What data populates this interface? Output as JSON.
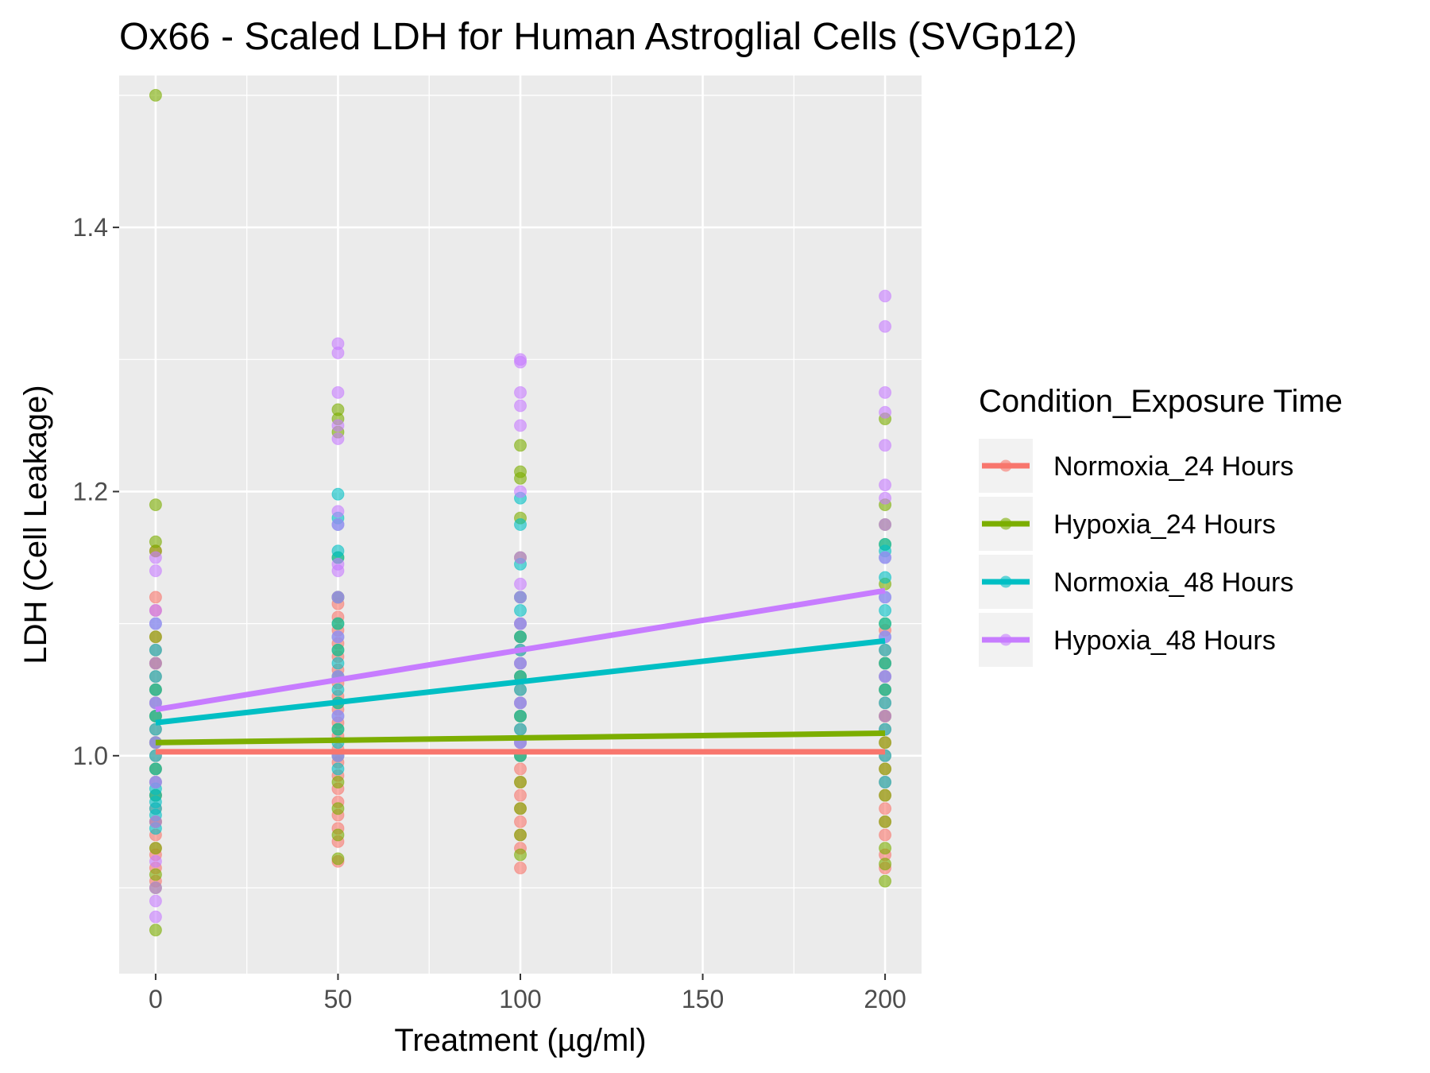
{
  "chart_data": {
    "type": "scatter",
    "title": "Ox66 - Scaled LDH for Human Astroglial Cells (SVGp12)",
    "xlabel": "Treatment (µg/ml)",
    "ylabel": "LDH (Cell Leakage)",
    "xlim": [
      -10,
      210
    ],
    "ylim": [
      0.835,
      1.515
    ],
    "x_ticks": [
      0,
      50,
      100,
      150,
      200
    ],
    "x_tick_labels": [
      "0",
      "50",
      "100",
      "150",
      "200"
    ],
    "y_ticks": [
      1.0,
      1.2,
      1.4
    ],
    "y_tick_labels": [
      "1.0",
      "1.2",
      "1.4"
    ],
    "grid": true,
    "legend": {
      "title": "Condition_Exposure Time",
      "position": "right"
    },
    "series": [
      {
        "name": "Normoxia_24 Hours",
        "color": "#F8766D",
        "trend": [
          [
            0,
            1.003
          ],
          [
            200,
            1.003
          ]
        ],
        "points": [
          [
            0,
            0.905
          ],
          [
            0,
            0.915
          ],
          [
            0,
            0.925
          ],
          [
            0,
            0.93
          ],
          [
            0,
            0.94
          ],
          [
            0,
            0.95
          ],
          [
            0,
            0.96
          ],
          [
            0,
            0.97
          ],
          [
            0,
            0.98
          ],
          [
            0,
            0.99
          ],
          [
            0,
            1.0
          ],
          [
            0,
            1.01
          ],
          [
            0,
            1.02
          ],
          [
            0,
            1.03
          ],
          [
            0,
            1.04
          ],
          [
            0,
            1.05
          ],
          [
            0,
            1.06
          ],
          [
            0,
            1.07
          ],
          [
            0,
            1.08
          ],
          [
            0,
            1.09
          ],
          [
            0,
            1.11
          ],
          [
            0,
            1.12
          ],
          [
            0,
            1.155
          ],
          [
            50,
            0.92
          ],
          [
            50,
            0.935
          ],
          [
            50,
            0.945
          ],
          [
            50,
            0.955
          ],
          [
            50,
            0.965
          ],
          [
            50,
            0.975
          ],
          [
            50,
            0.985
          ],
          [
            50,
            0.995
          ],
          [
            50,
            1.005
          ],
          [
            50,
            1.015
          ],
          [
            50,
            1.025
          ],
          [
            50,
            1.035
          ],
          [
            50,
            1.045
          ],
          [
            50,
            1.055
          ],
          [
            50,
            1.065
          ],
          [
            50,
            1.075
          ],
          [
            50,
            1.085
          ],
          [
            50,
            1.095
          ],
          [
            50,
            1.105
          ],
          [
            50,
            1.115
          ],
          [
            50,
            1.12
          ],
          [
            100,
            0.915
          ],
          [
            100,
            0.93
          ],
          [
            100,
            0.94
          ],
          [
            100,
            0.95
          ],
          [
            100,
            0.96
          ],
          [
            100,
            0.97
          ],
          [
            100,
            0.98
          ],
          [
            100,
            0.99
          ],
          [
            100,
            1.0
          ],
          [
            100,
            1.01
          ],
          [
            100,
            1.02
          ],
          [
            100,
            1.03
          ],
          [
            100,
            1.04
          ],
          [
            100,
            1.05
          ],
          [
            100,
            1.06
          ],
          [
            100,
            1.07
          ],
          [
            100,
            1.08
          ],
          [
            100,
            1.09
          ],
          [
            100,
            1.1
          ],
          [
            200,
            0.915
          ],
          [
            200,
            0.925
          ],
          [
            200,
            0.94
          ],
          [
            200,
            0.95
          ],
          [
            200,
            0.96
          ],
          [
            200,
            0.97
          ],
          [
            200,
            0.98
          ],
          [
            200,
            0.99
          ],
          [
            200,
            1.0
          ],
          [
            200,
            1.01
          ],
          [
            200,
            1.02
          ],
          [
            200,
            1.03
          ],
          [
            200,
            1.04
          ],
          [
            200,
            1.05
          ],
          [
            200,
            1.06
          ],
          [
            200,
            1.07
          ],
          [
            200,
            1.08
          ],
          [
            200,
            1.095
          ]
        ]
      },
      {
        "name": "Hypoxia_24 Hours",
        "color": "#7CAE00",
        "trend": [
          [
            0,
            1.01
          ],
          [
            200,
            1.017
          ]
        ],
        "points": [
          [
            0,
            0.868
          ],
          [
            0,
            0.9
          ],
          [
            0,
            0.91
          ],
          [
            0,
            0.93
          ],
          [
            0,
            0.95
          ],
          [
            0,
            0.97
          ],
          [
            0,
            0.99
          ],
          [
            0,
            1.01
          ],
          [
            0,
            1.03
          ],
          [
            0,
            1.05
          ],
          [
            0,
            1.07
          ],
          [
            0,
            1.09
          ],
          [
            0,
            1.155
          ],
          [
            0,
            1.162
          ],
          [
            0,
            1.19
          ],
          [
            0,
            1.5
          ],
          [
            50,
            0.922
          ],
          [
            50,
            0.94
          ],
          [
            50,
            0.96
          ],
          [
            50,
            0.98
          ],
          [
            50,
            1.0
          ],
          [
            50,
            1.02
          ],
          [
            50,
            1.04
          ],
          [
            50,
            1.06
          ],
          [
            50,
            1.08
          ],
          [
            50,
            1.1
          ],
          [
            50,
            1.12
          ],
          [
            50,
            1.15
          ],
          [
            50,
            1.245
          ],
          [
            50,
            1.255
          ],
          [
            50,
            1.262
          ],
          [
            100,
            0.925
          ],
          [
            100,
            0.94
          ],
          [
            100,
            0.96
          ],
          [
            100,
            0.98
          ],
          [
            100,
            1.0
          ],
          [
            100,
            1.03
          ],
          [
            100,
            1.06
          ],
          [
            100,
            1.09
          ],
          [
            100,
            1.12
          ],
          [
            100,
            1.15
          ],
          [
            100,
            1.18
          ],
          [
            100,
            1.21
          ],
          [
            100,
            1.215
          ],
          [
            100,
            1.235
          ],
          [
            200,
            0.905
          ],
          [
            200,
            0.918
          ],
          [
            200,
            0.93
          ],
          [
            200,
            0.95
          ],
          [
            200,
            0.97
          ],
          [
            200,
            0.99
          ],
          [
            200,
            1.01
          ],
          [
            200,
            1.03
          ],
          [
            200,
            1.05
          ],
          [
            200,
            1.07
          ],
          [
            200,
            1.1
          ],
          [
            200,
            1.13
          ],
          [
            200,
            1.16
          ],
          [
            200,
            1.175
          ],
          [
            200,
            1.19
          ],
          [
            200,
            1.255
          ]
        ]
      },
      {
        "name": "Normoxia_48 Hours",
        "color": "#00BFC4",
        "trend": [
          [
            0,
            1.025
          ],
          [
            200,
            1.087
          ]
        ],
        "points": [
          [
            0,
            0.945
          ],
          [
            0,
            0.955
          ],
          [
            0,
            0.96
          ],
          [
            0,
            0.965
          ],
          [
            0,
            0.97
          ],
          [
            0,
            0.975
          ],
          [
            0,
            0.98
          ],
          [
            0,
            0.99
          ],
          [
            0,
            1.0
          ],
          [
            0,
            1.01
          ],
          [
            0,
            1.02
          ],
          [
            0,
            1.03
          ],
          [
            0,
            1.04
          ],
          [
            0,
            1.05
          ],
          [
            0,
            1.06
          ],
          [
            0,
            1.08
          ],
          [
            0,
            1.1
          ],
          [
            50,
            0.99
          ],
          [
            50,
            1.0
          ],
          [
            50,
            1.01
          ],
          [
            50,
            1.02
          ],
          [
            50,
            1.03
          ],
          [
            50,
            1.04
          ],
          [
            50,
            1.05
          ],
          [
            50,
            1.06
          ],
          [
            50,
            1.07
          ],
          [
            50,
            1.08
          ],
          [
            50,
            1.09
          ],
          [
            50,
            1.1
          ],
          [
            50,
            1.12
          ],
          [
            50,
            1.15
          ],
          [
            50,
            1.155
          ],
          [
            50,
            1.175
          ],
          [
            50,
            1.18
          ],
          [
            50,
            1.198
          ],
          [
            100,
            1.0
          ],
          [
            100,
            1.01
          ],
          [
            100,
            1.02
          ],
          [
            100,
            1.03
          ],
          [
            100,
            1.04
          ],
          [
            100,
            1.05
          ],
          [
            100,
            1.06
          ],
          [
            100,
            1.07
          ],
          [
            100,
            1.08
          ],
          [
            100,
            1.09
          ],
          [
            100,
            1.1
          ],
          [
            100,
            1.11
          ],
          [
            100,
            1.12
          ],
          [
            100,
            1.145
          ],
          [
            100,
            1.175
          ],
          [
            100,
            1.195
          ],
          [
            200,
            0.98
          ],
          [
            200,
            1.0
          ],
          [
            200,
            1.02
          ],
          [
            200,
            1.04
          ],
          [
            200,
            1.05
          ],
          [
            200,
            1.06
          ],
          [
            200,
            1.07
          ],
          [
            200,
            1.08
          ],
          [
            200,
            1.09
          ],
          [
            200,
            1.1
          ],
          [
            200,
            1.11
          ],
          [
            200,
            1.12
          ],
          [
            200,
            1.135
          ],
          [
            200,
            1.15
          ],
          [
            200,
            1.155
          ],
          [
            200,
            1.16
          ]
        ]
      },
      {
        "name": "Hypoxia_48 Hours",
        "color": "#C77CFF",
        "trend": [
          [
            0,
            1.035
          ],
          [
            200,
            1.125
          ]
        ],
        "points": [
          [
            0,
            0.878
          ],
          [
            0,
            0.89
          ],
          [
            0,
            0.9
          ],
          [
            0,
            0.92
          ],
          [
            0,
            0.95
          ],
          [
            0,
            0.98
          ],
          [
            0,
            1.01
          ],
          [
            0,
            1.04
          ],
          [
            0,
            1.07
          ],
          [
            0,
            1.1
          ],
          [
            0,
            1.11
          ],
          [
            0,
            1.14
          ],
          [
            0,
            1.15
          ],
          [
            50,
            1.0
          ],
          [
            50,
            1.03
          ],
          [
            50,
            1.06
          ],
          [
            50,
            1.09
          ],
          [
            50,
            1.12
          ],
          [
            50,
            1.14
          ],
          [
            50,
            1.145
          ],
          [
            50,
            1.175
          ],
          [
            50,
            1.185
          ],
          [
            50,
            1.24
          ],
          [
            50,
            1.25
          ],
          [
            50,
            1.275
          ],
          [
            50,
            1.305
          ],
          [
            50,
            1.312
          ],
          [
            100,
            1.01
          ],
          [
            100,
            1.04
          ],
          [
            100,
            1.07
          ],
          [
            100,
            1.1
          ],
          [
            100,
            1.12
          ],
          [
            100,
            1.13
          ],
          [
            100,
            1.15
          ],
          [
            100,
            1.2
          ],
          [
            100,
            1.25
          ],
          [
            100,
            1.265
          ],
          [
            100,
            1.275
          ],
          [
            100,
            1.298
          ],
          [
            100,
            1.3
          ],
          [
            200,
            1.03
          ],
          [
            200,
            1.06
          ],
          [
            200,
            1.09
          ],
          [
            200,
            1.12
          ],
          [
            200,
            1.15
          ],
          [
            200,
            1.175
          ],
          [
            200,
            1.195
          ],
          [
            200,
            1.205
          ],
          [
            200,
            1.235
          ],
          [
            200,
            1.26
          ],
          [
            200,
            1.275
          ],
          [
            200,
            1.325
          ],
          [
            200,
            1.348
          ]
        ]
      }
    ]
  }
}
